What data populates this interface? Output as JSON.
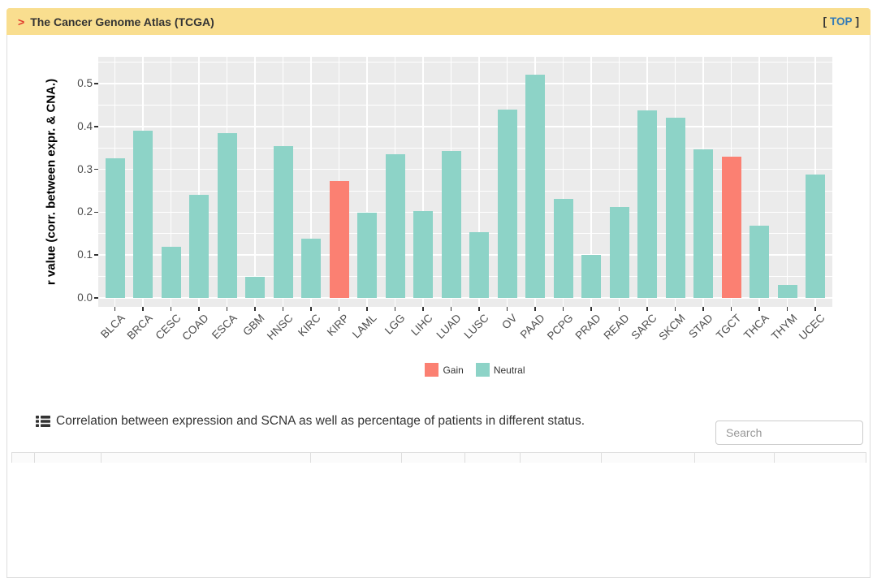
{
  "header": {
    "arrow": ">",
    "title": "The Cancer Genome Atlas (TCGA)",
    "top_link": {
      "prefix": "[",
      "label": "TOP",
      "suffix": "]"
    }
  },
  "chart_data": {
    "type": "bar",
    "title": "",
    "xlabel": "",
    "ylabel": "r value (corr. between expr. & CNA.)",
    "ylim": [
      0,
      0.55
    ],
    "yticks": [
      0.0,
      0.1,
      0.2,
      0.3,
      0.4,
      0.5
    ],
    "grid": "on",
    "legend_position": "bottom",
    "categories": [
      "BLCA",
      "BRCA",
      "CESC",
      "COAD",
      "ESCA",
      "GBM",
      "HNSC",
      "KIRC",
      "KIRP",
      "LAML",
      "LGG",
      "LIHC",
      "LUAD",
      "LUSC",
      "OV",
      "PAAD",
      "PCPG",
      "PRAD",
      "READ",
      "SARC",
      "SKCM",
      "STAD",
      "TGCT",
      "THCA",
      "THYM",
      "UCEC"
    ],
    "values": [
      0.325,
      0.39,
      0.12,
      0.24,
      0.385,
      0.05,
      0.355,
      0.138,
      0.272,
      0.198,
      0.335,
      0.202,
      0.342,
      0.153,
      0.44,
      0.52,
      0.232,
      0.1,
      0.213,
      0.437,
      0.42,
      0.346,
      0.33,
      0.168,
      0.03,
      0.288
    ],
    "status": [
      "Neutral",
      "Neutral",
      "Neutral",
      "Neutral",
      "Neutral",
      "Neutral",
      "Neutral",
      "Neutral",
      "Gain",
      "Neutral",
      "Neutral",
      "Neutral",
      "Neutral",
      "Neutral",
      "Neutral",
      "Neutral",
      "Neutral",
      "Neutral",
      "Neutral",
      "Neutral",
      "Neutral",
      "Neutral",
      "Gain",
      "Neutral",
      "Neutral",
      "Neutral"
    ],
    "legend": [
      {
        "label": "Gain",
        "color": "#FB8072"
      },
      {
        "label": "Neutral",
        "color": "#8DD3C7"
      }
    ],
    "panel_bg": "#EBEBEB",
    "gridline_color": "#FFFFFF"
  },
  "table_section": {
    "caption": "Correlation between expression and SCNA as well as percentage of patients in different status.",
    "search_placeholder": "Search"
  }
}
